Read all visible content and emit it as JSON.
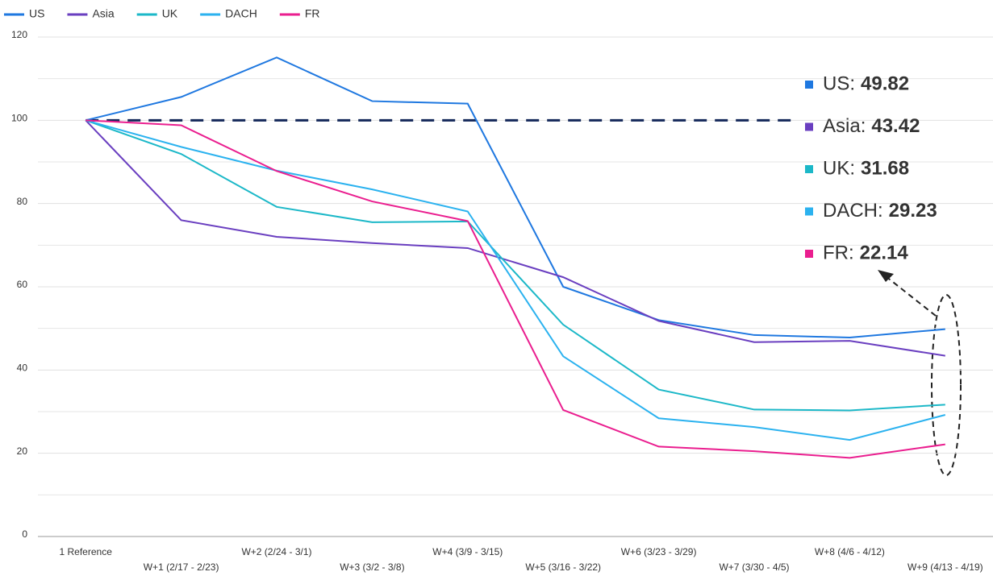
{
  "chart_data": {
    "type": "line",
    "categories": [
      "1 Reference",
      "W+1 (2/17 - 2/23)",
      "W+2 (2/24 - 3/1)",
      "W+3 (3/2 - 3/8)",
      "W+4 (3/9 - 3/15)",
      "W+5 (3/16 - 3/22)",
      "W+6 (3/23 - 3/29)",
      "W+7 (3/30 - 4/5)",
      "W+8 (4/6 - 4/12)",
      "W+9 (4/13 - 4/19)"
    ],
    "series": [
      {
        "name": "US",
        "color": "#1f78e0",
        "values": [
          100,
          105.6,
          115.1,
          104.6,
          104,
          60,
          52,
          48.4,
          47.8,
          49.82
        ]
      },
      {
        "name": "Asia",
        "color": "#6a3fc0",
        "values": [
          100,
          76,
          72,
          70.5,
          69.3,
          62.3,
          51.8,
          46.7,
          47,
          43.42
        ]
      },
      {
        "name": "UK",
        "color": "#1cb8c8",
        "values": [
          100,
          91.9,
          79.2,
          75.5,
          75.7,
          50.9,
          35.3,
          30.5,
          30.3,
          31.68
        ]
      },
      {
        "name": "DACH",
        "color": "#2bb2ef",
        "values": [
          100,
          93.6,
          87.9,
          83.4,
          78.1,
          43.3,
          28.4,
          26.3,
          23.2,
          29.23
        ]
      },
      {
        "name": "FR",
        "color": "#ea1e8f",
        "values": [
          100,
          98.8,
          87.8,
          80.5,
          75.8,
          30.4,
          21.6,
          20.5,
          18.9,
          22.14
        ]
      }
    ],
    "reference_value": 100,
    "annotation_labels": [
      "US:",
      "Asia:",
      "UK:",
      "DACH:",
      "FR:"
    ],
    "ylim": [
      0,
      120
    ],
    "yticks": [
      0,
      20,
      40,
      60,
      80,
      100,
      120
    ],
    "minor_gridlines": [
      10,
      30,
      50,
      70,
      90,
      110
    ],
    "grid": true,
    "legend": "top"
  }
}
